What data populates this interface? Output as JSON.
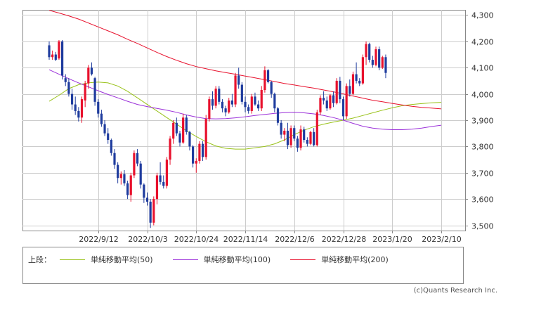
{
  "chart_data": {
    "type": "candlestick",
    "title": "",
    "xlabel": "",
    "ylabel": "",
    "ylim": [
      3480,
      4320
    ],
    "y_ticks": [
      "3,500",
      "3,600",
      "3,700",
      "3,800",
      "3,900",
      "4,000",
      "4,100",
      "4,200",
      "4,300"
    ],
    "y_tick_values": [
      3500,
      3600,
      3700,
      3800,
      3900,
      4000,
      4100,
      4200,
      4300
    ],
    "x_ticks": [
      "2022/9/12",
      "2022/10/3",
      "2022/10/24",
      "2022/11/14",
      "2022/12/6",
      "2022/12/28",
      "2023/1/20",
      "2023/2/10"
    ],
    "x_tick_index": [
      15,
      30,
      45,
      60,
      75,
      90,
      105,
      120
    ],
    "grid": true,
    "up_color": "#e8112d",
    "down_color": "#1f3c9e",
    "candles_ohlc": [
      [
        4185,
        4200,
        4130,
        4140
      ],
      [
        4140,
        4165,
        4130,
        4150
      ],
      [
        4150,
        4160,
        4125,
        4130
      ],
      [
        4135,
        4205,
        4130,
        4200
      ],
      [
        4200,
        4205,
        4055,
        4070
      ],
      [
        4060,
        4075,
        4030,
        4045
      ],
      [
        4045,
        4060,
        3990,
        4000
      ],
      [
        4000,
        4020,
        3940,
        3960
      ],
      [
        3960,
        3990,
        3920,
        3935
      ],
      [
        3935,
        3950,
        3895,
        3910
      ],
      [
        3910,
        3990,
        3890,
        3980
      ],
      [
        3975,
        4050,
        3950,
        4040
      ],
      [
        4040,
        4110,
        4020,
        4100
      ],
      [
        4100,
        4120,
        4070,
        4075
      ],
      [
        4060,
        4065,
        3955,
        3970
      ],
      [
        3970,
        3980,
        3910,
        3925
      ],
      [
        3925,
        3940,
        3875,
        3885
      ],
      [
        3885,
        3900,
        3840,
        3850
      ],
      [
        3850,
        3870,
        3810,
        3825
      ],
      [
        3825,
        3830,
        3765,
        3775
      ],
      [
        3775,
        3790,
        3715,
        3730
      ],
      [
        3730,
        3740,
        3660,
        3680
      ],
      [
        3680,
        3705,
        3655,
        3695
      ],
      [
        3695,
        3710,
        3650,
        3660
      ],
      [
        3660,
        3670,
        3600,
        3615
      ],
      [
        3615,
        3700,
        3590,
        3690
      ],
      [
        3690,
        3785,
        3680,
        3775
      ],
      [
        3775,
        3790,
        3725,
        3735
      ],
      [
        3735,
        3745,
        3640,
        3655
      ],
      [
        3655,
        3660,
        3585,
        3605
      ],
      [
        3605,
        3625,
        3575,
        3590
      ],
      [
        3590,
        3600,
        3490,
        3510
      ],
      [
        3510,
        3610,
        3500,
        3600
      ],
      [
        3600,
        3700,
        3580,
        3690
      ],
      [
        3690,
        3740,
        3655,
        3665
      ],
      [
        3665,
        3690,
        3640,
        3650
      ],
      [
        3650,
        3760,
        3640,
        3750
      ],
      [
        3750,
        3840,
        3730,
        3830
      ],
      [
        3830,
        3900,
        3810,
        3890
      ],
      [
        3890,
        3910,
        3840,
        3850
      ],
      [
        3850,
        3860,
        3800,
        3815
      ],
      [
        3815,
        3925,
        3810,
        3910
      ],
      [
        3910,
        3920,
        3845,
        3855
      ],
      [
        3855,
        3860,
        3785,
        3800
      ],
      [
        3800,
        3805,
        3720,
        3735
      ],
      [
        3735,
        3755,
        3700,
        3745
      ],
      [
        3745,
        3820,
        3735,
        3810
      ],
      [
        3810,
        3820,
        3745,
        3760
      ],
      [
        3760,
        3920,
        3750,
        3905
      ],
      [
        3905,
        3990,
        3895,
        3980
      ],
      [
        3980,
        4010,
        3940,
        3955
      ],
      [
        3955,
        4030,
        3945,
        4020
      ],
      [
        4020,
        4030,
        3960,
        3970
      ],
      [
        3970,
        3980,
        3930,
        3945
      ],
      [
        3945,
        3955,
        3915,
        3930
      ],
      [
        3930,
        3985,
        3925,
        3975
      ],
      [
        3975,
        4000,
        3950,
        3960
      ],
      [
        3960,
        4080,
        3950,
        4070
      ],
      [
        4070,
        4100,
        4020,
        4035
      ],
      [
        4035,
        4045,
        3960,
        3970
      ],
      [
        3970,
        3990,
        3930,
        3950
      ],
      [
        3950,
        3960,
        3925,
        3935
      ],
      [
        3935,
        4000,
        3925,
        3990
      ],
      [
        3990,
        4005,
        3955,
        3960
      ],
      [
        3960,
        3975,
        3935,
        3945
      ],
      [
        3945,
        4030,
        3935,
        4015
      ],
      [
        4015,
        4105,
        4005,
        4090
      ],
      [
        4090,
        4095,
        4040,
        4045
      ],
      [
        4045,
        4050,
        3985,
        4000
      ],
      [
        4000,
        4005,
        3930,
        3945
      ],
      [
        3945,
        3950,
        3880,
        3890
      ],
      [
        3890,
        3900,
        3830,
        3845
      ],
      [
        3845,
        3870,
        3820,
        3860
      ],
      [
        3860,
        3890,
        3790,
        3805
      ],
      [
        3805,
        3880,
        3795,
        3870
      ],
      [
        3870,
        3880,
        3820,
        3830
      ],
      [
        3830,
        3840,
        3780,
        3795
      ],
      [
        3795,
        3880,
        3785,
        3865
      ],
      [
        3865,
        3875,
        3815,
        3825
      ],
      [
        3825,
        3835,
        3800,
        3810
      ],
      [
        3810,
        3860,
        3805,
        3855
      ],
      [
        3855,
        3870,
        3800,
        3805
      ],
      [
        3805,
        3940,
        3800,
        3930
      ],
      [
        3930,
        3995,
        3920,
        3985
      ],
      [
        3985,
        4010,
        3960,
        3975
      ],
      [
        3975,
        3990,
        3935,
        3945
      ],
      [
        3945,
        4000,
        3940,
        3995
      ],
      [
        3995,
        4010,
        3950,
        3965
      ],
      [
        3965,
        4060,
        3960,
        4050
      ],
      [
        4050,
        4065,
        3965,
        3980
      ],
      [
        3980,
        3990,
        3900,
        3915
      ],
      [
        3915,
        4040,
        3905,
        4030
      ],
      [
        4030,
        4055,
        3990,
        4000
      ],
      [
        4000,
        4085,
        3995,
        4075
      ],
      [
        4075,
        4120,
        4040,
        4050
      ],
      [
        4050,
        4060,
        4030,
        4040
      ],
      [
        4040,
        4150,
        4035,
        4140
      ],
      [
        4140,
        4200,
        4110,
        4190
      ],
      [
        4190,
        4195,
        4120,
        4130
      ],
      [
        4130,
        4145,
        4100,
        4110
      ],
      [
        4110,
        4180,
        4105,
        4170
      ],
      [
        4170,
        4180,
        4090,
        4100
      ],
      [
        4100,
        4145,
        4095,
        4140
      ],
      [
        4140,
        4150,
        4060,
        4080
      ]
    ],
    "series": [
      {
        "name": "単純移動平均(50)",
        "color": "#99c21a",
        "points": [
          [
            0,
            3972
          ],
          [
            3,
            3995
          ],
          [
            6,
            4020
          ],
          [
            9,
            4035
          ],
          [
            12,
            4042
          ],
          [
            15,
            4045
          ],
          [
            18,
            4042
          ],
          [
            21,
            4030
          ],
          [
            24,
            4010
          ],
          [
            27,
            3985
          ],
          [
            30,
            3960
          ],
          [
            33,
            3935
          ],
          [
            36,
            3910
          ],
          [
            39,
            3885
          ],
          [
            42,
            3860
          ],
          [
            45,
            3838
          ],
          [
            48,
            3818
          ],
          [
            51,
            3802
          ],
          [
            54,
            3793
          ],
          [
            57,
            3790
          ],
          [
            60,
            3790
          ],
          [
            63,
            3795
          ],
          [
            66,
            3800
          ],
          [
            69,
            3810
          ],
          [
            72,
            3825
          ],
          [
            75,
            3845
          ],
          [
            78,
            3862
          ],
          [
            81,
            3875
          ],
          [
            84,
            3885
          ],
          [
            87,
            3893
          ],
          [
            90,
            3900
          ],
          [
            93,
            3908
          ],
          [
            96,
            3918
          ],
          [
            99,
            3928
          ],
          [
            102,
            3938
          ],
          [
            105,
            3947
          ],
          [
            108,
            3955
          ],
          [
            111,
            3960
          ],
          [
            114,
            3963
          ],
          [
            117,
            3966
          ],
          [
            120,
            3968
          ]
        ]
      },
      {
        "name": "単純移動平均(100)",
        "color": "#9b30d9",
        "points": [
          [
            0,
            4092
          ],
          [
            3,
            4075
          ],
          [
            6,
            4058
          ],
          [
            9,
            4042
          ],
          [
            12,
            4027
          ],
          [
            15,
            4012
          ],
          [
            18,
            3998
          ],
          [
            21,
            3985
          ],
          [
            24,
            3972
          ],
          [
            27,
            3960
          ],
          [
            30,
            3952
          ],
          [
            33,
            3945
          ],
          [
            36,
            3938
          ],
          [
            39,
            3930
          ],
          [
            42,
            3920
          ],
          [
            45,
            3912
          ],
          [
            48,
            3906
          ],
          [
            51,
            3905
          ],
          [
            54,
            3906
          ],
          [
            57,
            3909
          ],
          [
            60,
            3913
          ],
          [
            63,
            3918
          ],
          [
            66,
            3922
          ],
          [
            69,
            3926
          ],
          [
            72,
            3929
          ],
          [
            75,
            3930
          ],
          [
            78,
            3928
          ],
          [
            81,
            3924
          ],
          [
            84,
            3918
          ],
          [
            87,
            3910
          ],
          [
            90,
            3900
          ],
          [
            93,
            3888
          ],
          [
            96,
            3877
          ],
          [
            99,
            3870
          ],
          [
            102,
            3866
          ],
          [
            105,
            3864
          ],
          [
            108,
            3864
          ],
          [
            111,
            3866
          ],
          [
            114,
            3870
          ],
          [
            117,
            3876
          ],
          [
            120,
            3881
          ]
        ]
      },
      {
        "name": "単純移動平均(200)",
        "color": "#e8112d",
        "points": [
          [
            0,
            4318
          ],
          [
            3,
            4308
          ],
          [
            6,
            4297
          ],
          [
            9,
            4285
          ],
          [
            12,
            4270
          ],
          [
            15,
            4255
          ],
          [
            18,
            4240
          ],
          [
            21,
            4225
          ],
          [
            24,
            4208
          ],
          [
            27,
            4192
          ],
          [
            30,
            4175
          ],
          [
            33,
            4158
          ],
          [
            36,
            4142
          ],
          [
            39,
            4128
          ],
          [
            42,
            4115
          ],
          [
            45,
            4104
          ],
          [
            48,
            4096
          ],
          [
            51,
            4088
          ],
          [
            54,
            4081
          ],
          [
            57,
            4075
          ],
          [
            60,
            4068
          ],
          [
            63,
            4061
          ],
          [
            66,
            4054
          ],
          [
            69,
            4047
          ],
          [
            72,
            4040
          ],
          [
            75,
            4034
          ],
          [
            78,
            4028
          ],
          [
            81,
            4022
          ],
          [
            84,
            4015
          ],
          [
            87,
            4008
          ],
          [
            90,
            4000
          ],
          [
            93,
            3992
          ],
          [
            96,
            3984
          ],
          [
            99,
            3976
          ],
          [
            102,
            3970
          ],
          [
            105,
            3964
          ],
          [
            108,
            3958
          ],
          [
            111,
            3953
          ],
          [
            114,
            3949
          ],
          [
            117,
            3946
          ],
          [
            120,
            3943
          ]
        ]
      }
    ]
  },
  "legend": {
    "prefix": "上段：",
    "items": [
      {
        "label": "単純移動平均(50)",
        "color": "#99c21a"
      },
      {
        "label": "単純移動平均(100)",
        "color": "#9b30d9"
      },
      {
        "label": "単純移動平均(200)",
        "color": "#e8112d"
      }
    ]
  },
  "credit": "(c)Quants Research Inc."
}
